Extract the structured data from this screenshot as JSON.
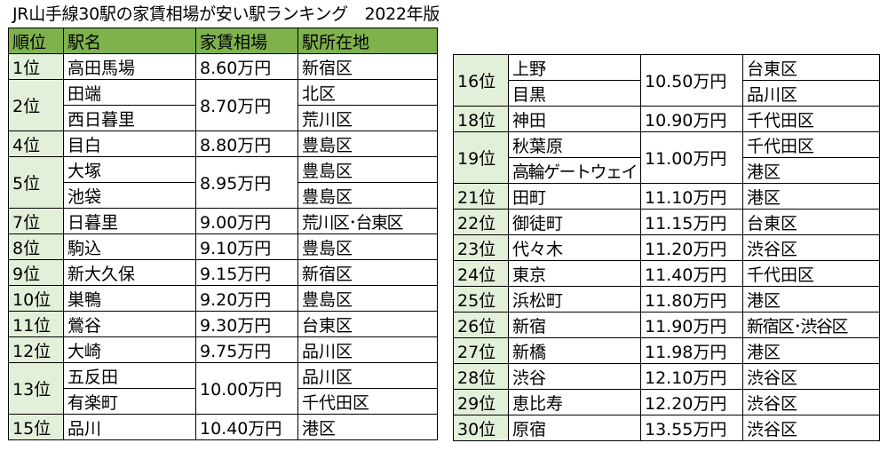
{
  "title": "JR山手線30駅の家賃相場が安い駅ランキング　2022年版",
  "headers": {
    "rank": "順位",
    "station": "駅名",
    "rent": "家賃相場",
    "location": "駅所在地"
  },
  "rows": [
    {
      "rank": "1位",
      "station": "高田馬場",
      "rent": "8.60万円",
      "location": "新宿区"
    },
    {
      "rank": "2位",
      "station": "田端",
      "rent": "8.70万円",
      "location": "北区"
    },
    {
      "rank": "",
      "station": "西日暮里",
      "rent": "",
      "location": "荒川区"
    },
    {
      "rank": "4位",
      "station": "目白",
      "rent": "8.80万円",
      "location": "豊島区"
    },
    {
      "rank": "5位",
      "station": "大塚",
      "rent": "8.95万円",
      "location": "豊島区"
    },
    {
      "rank": "",
      "station": "池袋",
      "rent": "",
      "location": "豊島区"
    },
    {
      "rank": "7位",
      "station": "日暮里",
      "rent": "9.00万円",
      "location": "荒川区･台東区"
    },
    {
      "rank": "8位",
      "station": "駒込",
      "rent": "9.10万円",
      "location": "豊島区"
    },
    {
      "rank": "9位",
      "station": "新大久保",
      "rent": "9.15万円",
      "location": "新宿区"
    },
    {
      "rank": "10位",
      "station": "巣鴨",
      "rent": "9.20万円",
      "location": "豊島区"
    },
    {
      "rank": "11位",
      "station": "鶯谷",
      "rent": "9.30万円",
      "location": "台東区"
    },
    {
      "rank": "12位",
      "station": "大崎",
      "rent": "9.75万円",
      "location": "品川区"
    },
    {
      "rank": "13位",
      "station": "五反田",
      "rent": "10.00万円",
      "location": "品川区"
    },
    {
      "rank": "",
      "station": "有楽町",
      "rent": "",
      "location": "千代田区"
    },
    {
      "rank": "15位",
      "station": "品川",
      "rent": "10.40万円",
      "location": "港区"
    },
    {
      "rank": "16位",
      "station": "上野",
      "rent": "10.50万円",
      "location": "台東区"
    },
    {
      "rank": "",
      "station": "目黒",
      "rent": "",
      "location": "品川区"
    },
    {
      "rank": "18位",
      "station": "神田",
      "rent": "10.90万円",
      "location": "千代田区"
    },
    {
      "rank": "19位",
      "station": "秋葉原",
      "rent": "11.00万円",
      "location": "千代田区"
    },
    {
      "rank": "",
      "station": "高輪ゲートウェイ",
      "rent": "",
      "location": "港区"
    },
    {
      "rank": "21位",
      "station": "田町",
      "rent": "11.10万円",
      "location": "港区"
    },
    {
      "rank": "22位",
      "station": "御徒町",
      "rent": "11.15万円",
      "location": "台東区"
    },
    {
      "rank": "23位",
      "station": "代々木",
      "rent": "11.20万円",
      "location": "渋谷区"
    },
    {
      "rank": "24位",
      "station": "東京",
      "rent": "11.40万円",
      "location": "千代田区"
    },
    {
      "rank": "25位",
      "station": "浜松町",
      "rent": "11.80万円",
      "location": "港区"
    },
    {
      "rank": "26位",
      "station": "新宿",
      "rent": "11.90万円",
      "location": "新宿区･渋谷区"
    },
    {
      "rank": "27位",
      "station": "新橋",
      "rent": "11.98万円",
      "location": "港区"
    },
    {
      "rank": "28位",
      "station": "渋谷",
      "rent": "12.10万円",
      "location": "渋谷区"
    },
    {
      "rank": "29位",
      "station": "恵比寿",
      "rent": "12.20万円",
      "location": "渋谷区"
    },
    {
      "rank": "30位",
      "station": "原宿",
      "rent": "13.55万円",
      "location": "渋谷区"
    }
  ],
  "colors": {
    "header_bg": "#7fb24c",
    "rank_bg": "#e2efd9"
  }
}
